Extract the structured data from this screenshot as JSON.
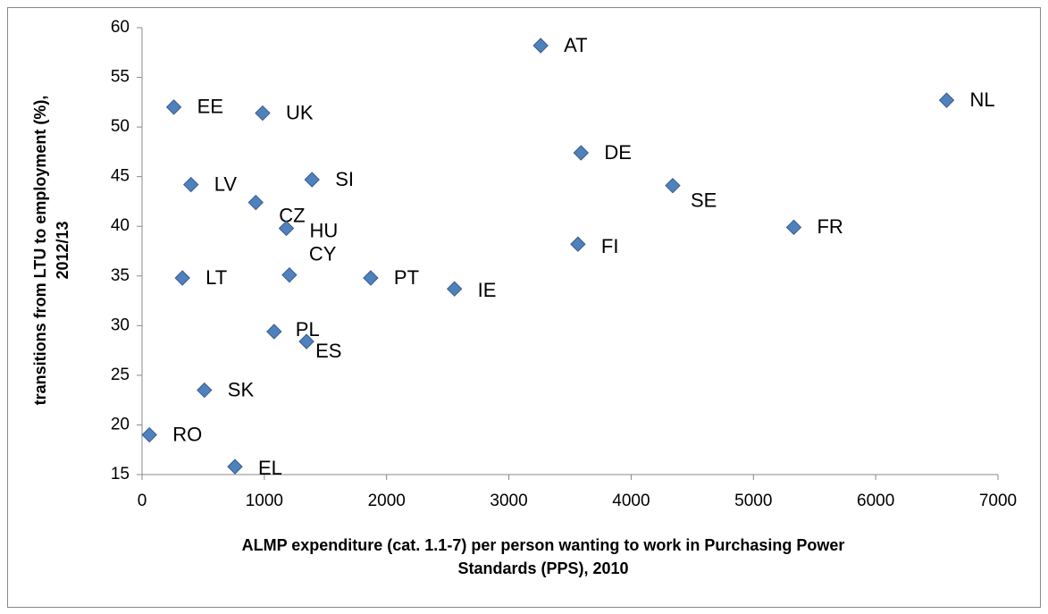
{
  "chart_data": {
    "type": "scatter",
    "x_label": [
      "ALMP expenditure (cat. 1.1-7) per person wanting to work in Purchasing Power",
      "Standards (PPS), 2010"
    ],
    "y_label": [
      "transitions from LTU to employment (%),",
      "2012/13"
    ],
    "point_labels": [
      "AT",
      "NL",
      "EE",
      "UK",
      "DE",
      "SI",
      "LV",
      "SE",
      "CZ",
      "HU",
      "FR",
      "FI",
      "CY",
      "LT",
      "PT",
      "IE",
      "PL",
      "ES",
      "SK",
      "RO",
      "EL"
    ],
    "x": [
      3260,
      6580,
      260,
      986,
      3590,
      1390,
      400,
      4340,
      930,
      1180,
      5330,
      3565,
      1205,
      330,
      1870,
      2555,
      1080,
      1345,
      510,
      60,
      760
    ],
    "values": [
      58.2,
      52.7,
      52,
      51.4,
      47.4,
      44.7,
      44.2,
      44.1,
      42.4,
      39.8,
      39.9,
      38.2,
      35.1,
      34.8,
      34.8,
      33.7,
      29.4,
      28.4,
      23.5,
      19,
      15.8
    ],
    "color": "#4f81bd",
    "xlim": [
      0,
      7000
    ],
    "xticks": [
      0,
      1000,
      2000,
      3000,
      4000,
      5000,
      6000,
      7000
    ],
    "ylim": [
      15,
      60
    ],
    "yticks": [
      15,
      20,
      25,
      30,
      35,
      40,
      45,
      50,
      55,
      60
    ],
    "grid": false
  }
}
